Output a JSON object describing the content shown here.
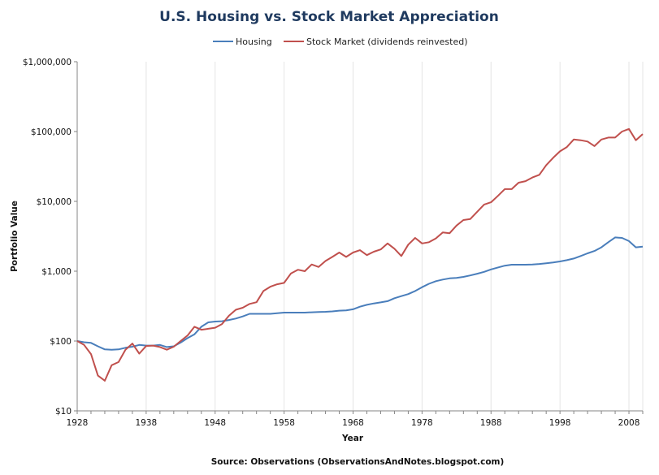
{
  "chart_data": {
    "type": "line",
    "title": "U.S. Housing vs. Stock Market Appreciation",
    "xlabel": "Year",
    "ylabel": "Portfolio Value",
    "source": "Source: Observations (ObservationsAndNotes.blogspot.com)",
    "yscale": "log",
    "xlim": [
      1928,
      2010
    ],
    "ylim": [
      10,
      1000000
    ],
    "xticks": [
      1928,
      1938,
      1948,
      1958,
      1968,
      1978,
      1988,
      1998,
      2008
    ],
    "xtick_labels": [
      "1928",
      "1938",
      "1948",
      "1958",
      "1968",
      "1978",
      "1988",
      "1998",
      "2008"
    ],
    "yticks": [
      10,
      100,
      1000,
      10000,
      100000,
      1000000
    ],
    "ytick_labels": [
      "$10",
      "$100",
      "$1,000",
      "$10,000",
      "$100,000",
      "$1,000,000"
    ],
    "legend_position": "top-center",
    "grid": "vertical",
    "series": [
      {
        "name": "Housing",
        "color": "#4a7ebb",
        "x": [
          1928,
          1929,
          1930,
          1931,
          1932,
          1933,
          1934,
          1935,
          1936,
          1937,
          1938,
          1939,
          1940,
          1941,
          1942,
          1943,
          1944,
          1945,
          1946,
          1947,
          1948,
          1949,
          1950,
          1951,
          1952,
          1953,
          1954,
          1955,
          1956,
          1957,
          1958,
          1959,
          1960,
          1961,
          1962,
          1963,
          1964,
          1965,
          1966,
          1967,
          1968,
          1969,
          1970,
          1971,
          1972,
          1973,
          1974,
          1975,
          1976,
          1977,
          1978,
          1979,
          1980,
          1981,
          1982,
          1983,
          1984,
          1985,
          1986,
          1987,
          1988,
          1989,
          1990,
          1991,
          1992,
          1993,
          1994,
          1995,
          1996,
          1997,
          1998,
          1999,
          2000,
          2001,
          2002,
          2003,
          2004,
          2005,
          2006,
          2007,
          2008,
          2009,
          2010
        ],
        "values": [
          100,
          96,
          94,
          84,
          76,
          75,
          76,
          80,
          83,
          88,
          86,
          86,
          88,
          82,
          84,
          95,
          110,
          125,
          160,
          185,
          190,
          192,
          200,
          210,
          225,
          245,
          245,
          245,
          245,
          250,
          255,
          255,
          255,
          255,
          258,
          260,
          262,
          266,
          272,
          275,
          285,
          310,
          330,
          345,
          358,
          372,
          410,
          440,
          470,
          520,
          590,
          660,
          720,
          760,
          790,
          800,
          830,
          870,
          920,
          980,
          1060,
          1130,
          1200,
          1240,
          1240,
          1240,
          1250,
          1270,
          1300,
          1330,
          1380,
          1440,
          1520,
          1650,
          1800,
          1950,
          2200,
          2600,
          3050,
          3000,
          2700,
          2200,
          2250
        ]
      },
      {
        "name": "Stock Market (dividends reinvested)",
        "color": "#c0504d",
        "x": [
          1928,
          1929,
          1930,
          1931,
          1932,
          1933,
          1934,
          1935,
          1936,
          1937,
          1938,
          1939,
          1940,
          1941,
          1942,
          1943,
          1944,
          1945,
          1946,
          1947,
          1948,
          1949,
          1950,
          1951,
          1952,
          1953,
          1954,
          1955,
          1956,
          1957,
          1958,
          1959,
          1960,
          1961,
          1962,
          1963,
          1964,
          1965,
          1966,
          1967,
          1968,
          1969,
          1970,
          1971,
          1972,
          1973,
          1974,
          1975,
          1976,
          1977,
          1978,
          1979,
          1980,
          1981,
          1982,
          1983,
          1984,
          1985,
          1986,
          1987,
          1988,
          1989,
          1990,
          1991,
          1992,
          1993,
          1994,
          1995,
          1996,
          1997,
          1998,
          1999,
          2000,
          2001,
          2002,
          2003,
          2004,
          2005,
          2006,
          2007,
          2008,
          2009,
          2010
        ],
        "values": [
          100,
          88,
          65,
          32,
          27,
          45,
          50,
          75,
          92,
          66,
          85,
          86,
          82,
          75,
          83,
          100,
          120,
          160,
          145,
          150,
          155,
          175,
          230,
          280,
          300,
          340,
          360,
          520,
          600,
          650,
          680,
          930,
          1050,
          1000,
          1250,
          1150,
          1400,
          1600,
          1850,
          1600,
          1850,
          2000,
          1700,
          1900,
          2050,
          2500,
          2100,
          1650,
          2400,
          3000,
          2500,
          2600,
          2950,
          3600,
          3500,
          4500,
          5400,
          5600,
          7100,
          9000,
          9700,
          12000,
          15000,
          15000,
          18500,
          19500,
          22000,
          24000,
          33000,
          42000,
          52000,
          60000,
          77000,
          75000,
          72000,
          62000,
          77000,
          82000,
          82000,
          100000,
          109000,
          75000,
          92000
        ]
      }
    ]
  }
}
